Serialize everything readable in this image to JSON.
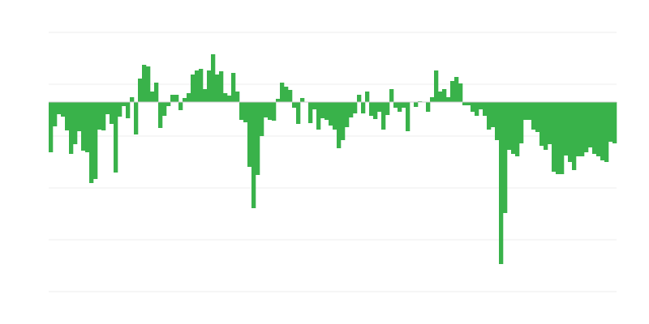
{
  "chart_data": {
    "type": "bar",
    "title": "",
    "xlabel": "",
    "ylabel": "",
    "ylim": [
      -234,
      86
    ],
    "grid": true,
    "legend": "none",
    "bar_color": "#39b24a",
    "grid_color": "#eeeeee",
    "values": [
      -62,
      -30,
      -15,
      -18,
      -35,
      -64,
      -52,
      -36,
      -60,
      -62,
      -100,
      -95,
      -34,
      -35,
      -15,
      -27,
      -87,
      -18,
      -5,
      -20,
      6,
      -40,
      29,
      46,
      44,
      13,
      24,
      -32,
      -17,
      -5,
      9,
      9,
      -10,
      5,
      11,
      34,
      39,
      41,
      16,
      39,
      59,
      34,
      38,
      11,
      8,
      36,
      13,
      -22,
      -25,
      -80,
      -131,
      -90,
      -42,
      -19,
      -22,
      -23,
      4,
      24,
      19,
      15,
      -7,
      -27,
      5,
      0,
      -26,
      -9,
      -34,
      -20,
      -22,
      -29,
      -34,
      -57,
      -47,
      -31,
      -19,
      -14,
      9,
      -14,
      13,
      -17,
      -21,
      -12,
      -34,
      -16,
      16,
      -7,
      -12,
      -7,
      -36,
      0,
      -6,
      1,
      0,
      -12,
      6,
      39,
      13,
      16,
      6,
      26,
      31,
      23,
      -4,
      -4,
      -12,
      -17,
      -9,
      -17,
      -34,
      -31,
      -47,
      -200,
      -137,
      -59,
      -64,
      -67,
      -51,
      -22,
      -22,
      -34,
      -37,
      -54,
      -59,
      -52,
      -86,
      -89,
      -89,
      -66,
      -74,
      -84,
      -67,
      -67,
      -62,
      -56,
      -64,
      -67,
      -72,
      -74,
      -49,
      -51
    ]
  }
}
